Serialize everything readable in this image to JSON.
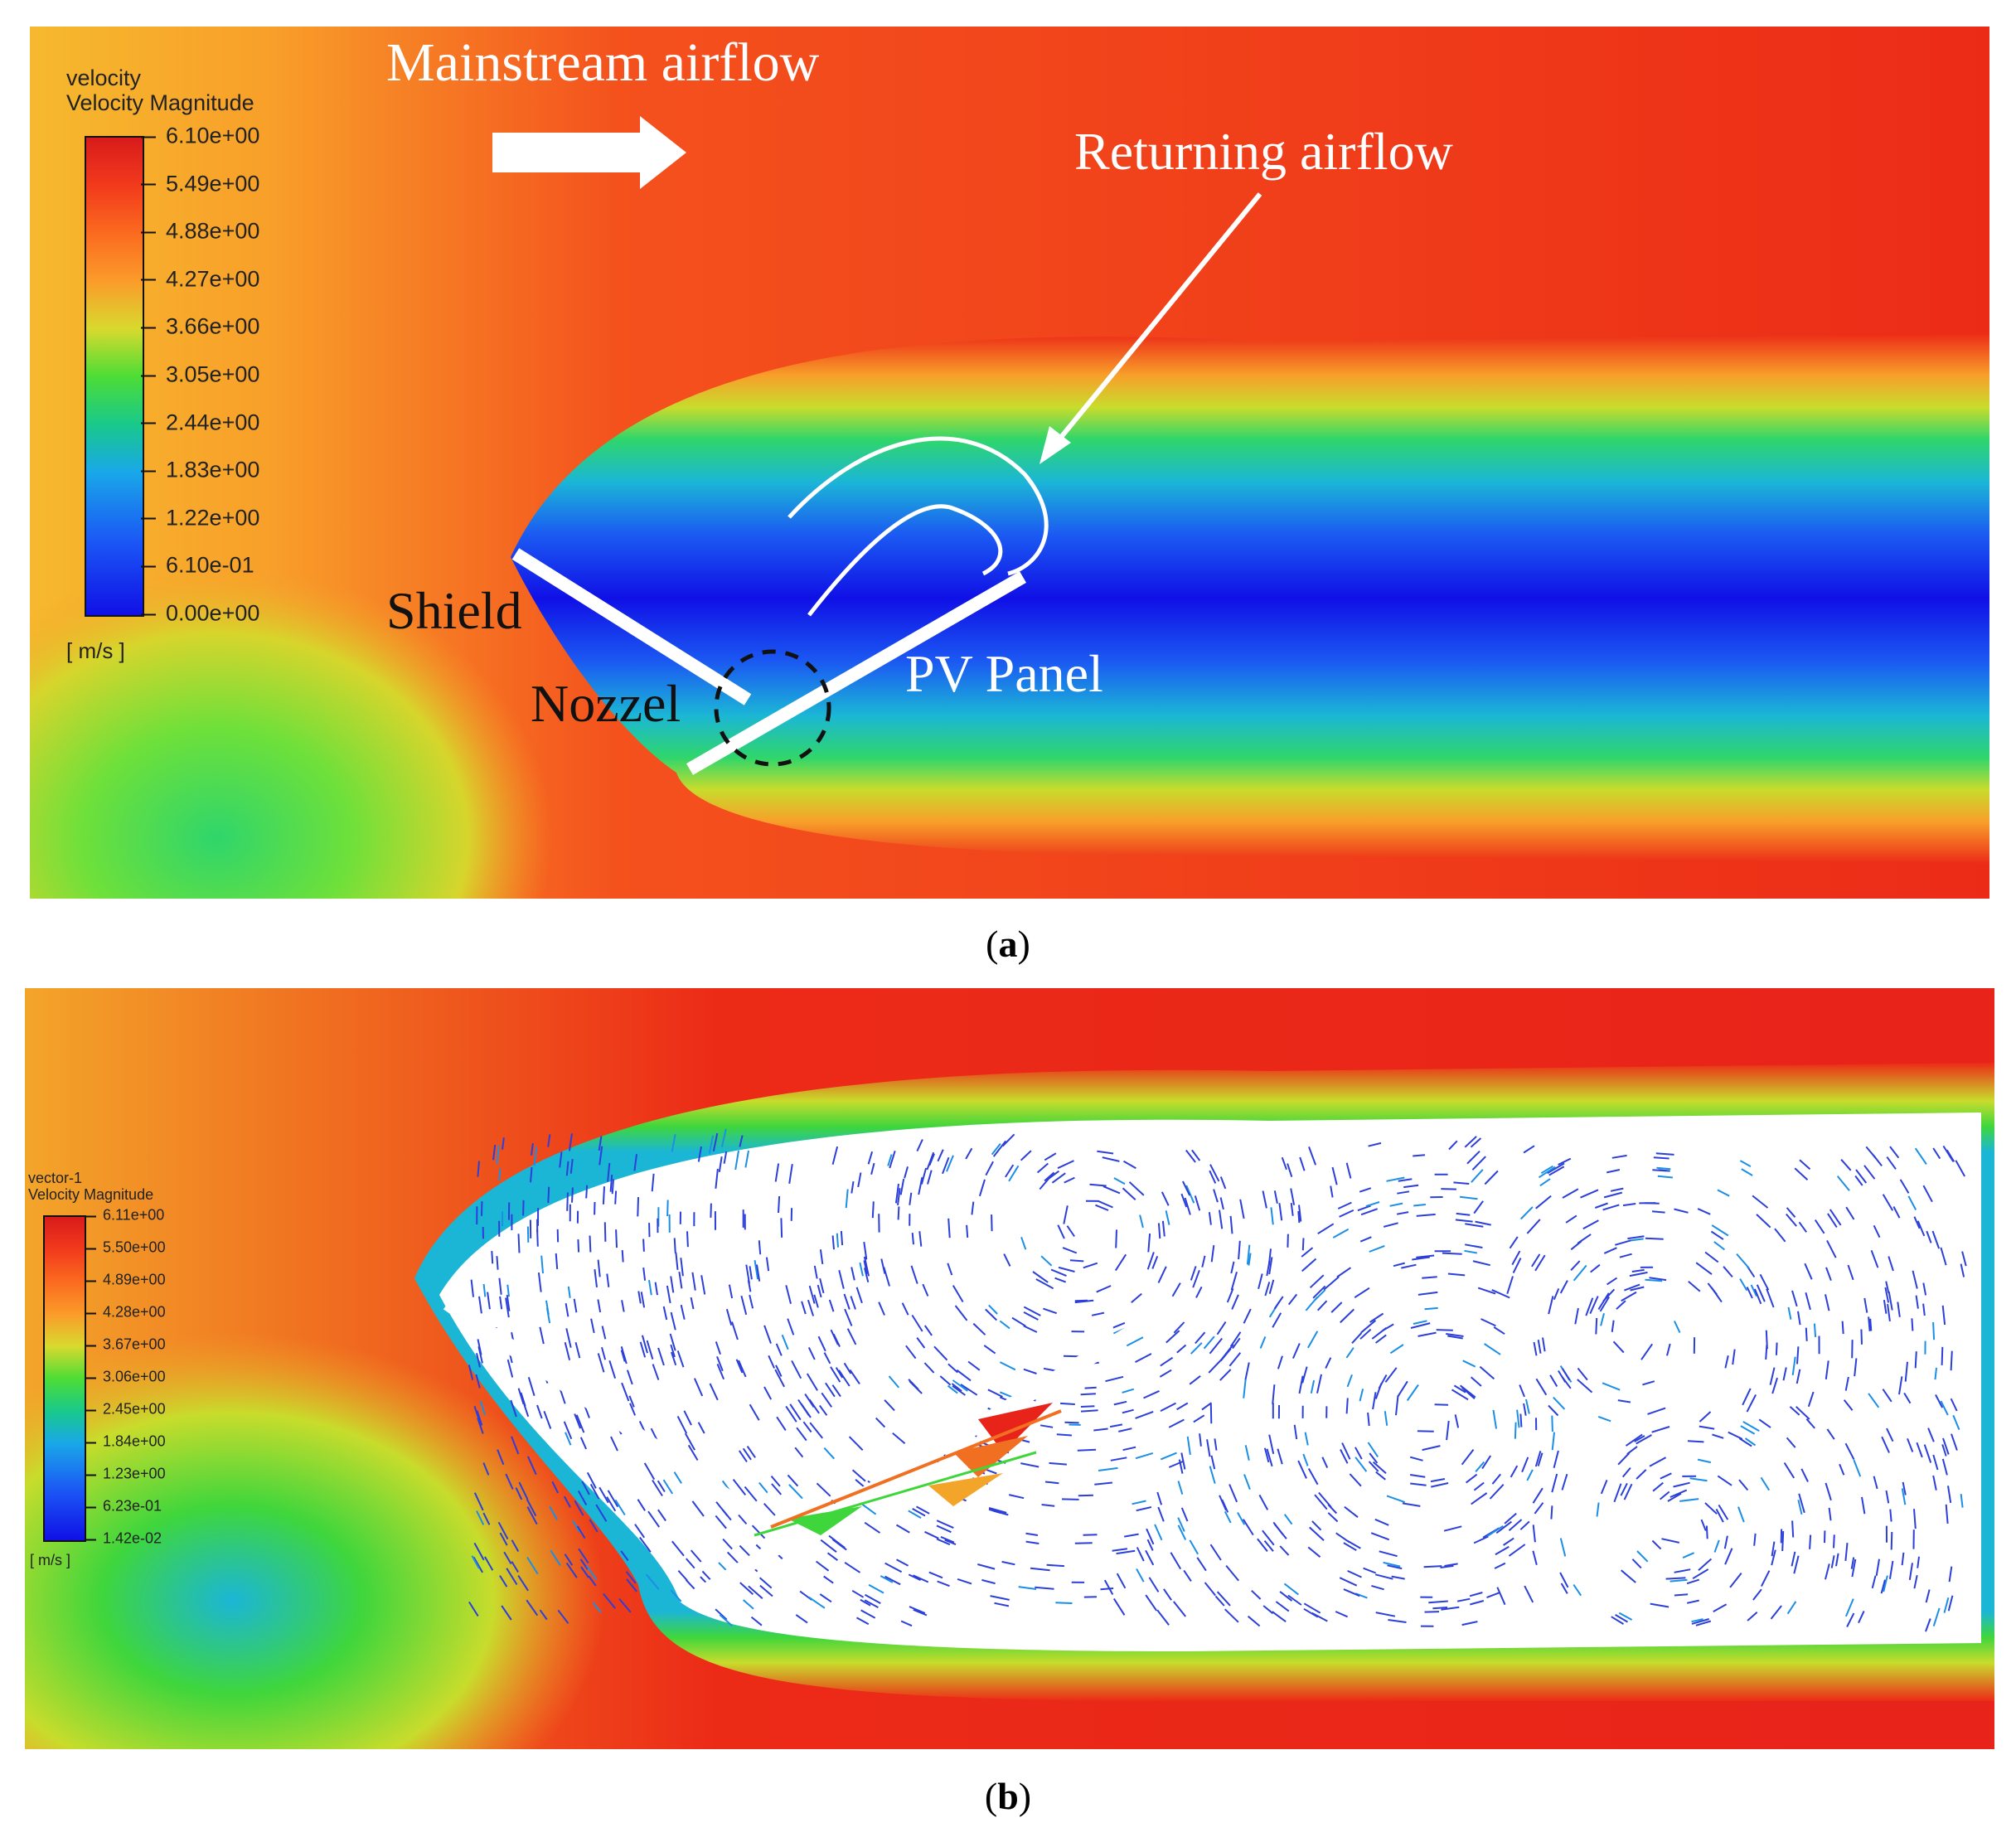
{
  "panel_a": {
    "legend": {
      "title_line1": "velocity",
      "title_line2": "Velocity Magnitude",
      "ticks": [
        "6.10e+00",
        "5.49e+00",
        "4.88e+00",
        "4.27e+00",
        "3.66e+00",
        "3.05e+00",
        "2.44e+00",
        "1.83e+00",
        "1.22e+00",
        "6.10e-01",
        "0.00e+00"
      ],
      "unit": "[ m/s ]"
    },
    "annotations": {
      "mainstream": "Mainstream airflow",
      "returning": "Returning airflow",
      "shield": "Shield",
      "nozzel": "Nozzel",
      "pv_panel": "PV Panel"
    },
    "caption_letter": "a"
  },
  "panel_b": {
    "legend": {
      "title_line1": "vector-1",
      "title_line2": "Velocity Magnitude",
      "ticks": [
        "6.11e+00",
        "5.50e+00",
        "4.89e+00",
        "4.28e+00",
        "3.67e+00",
        "3.06e+00",
        "2.45e+00",
        "1.84e+00",
        "1.23e+00",
        "6.23e-01",
        "1.42e-02"
      ],
      "unit": "[ m/s ]"
    },
    "caption_letter": "b"
  },
  "colors": {
    "high": "#e8231a",
    "upper_mid": "#fb6a1f",
    "mid": "#c8dc2c",
    "green": "#3fd63c",
    "cyan": "#1bb6d6",
    "low": "#1010e6"
  }
}
